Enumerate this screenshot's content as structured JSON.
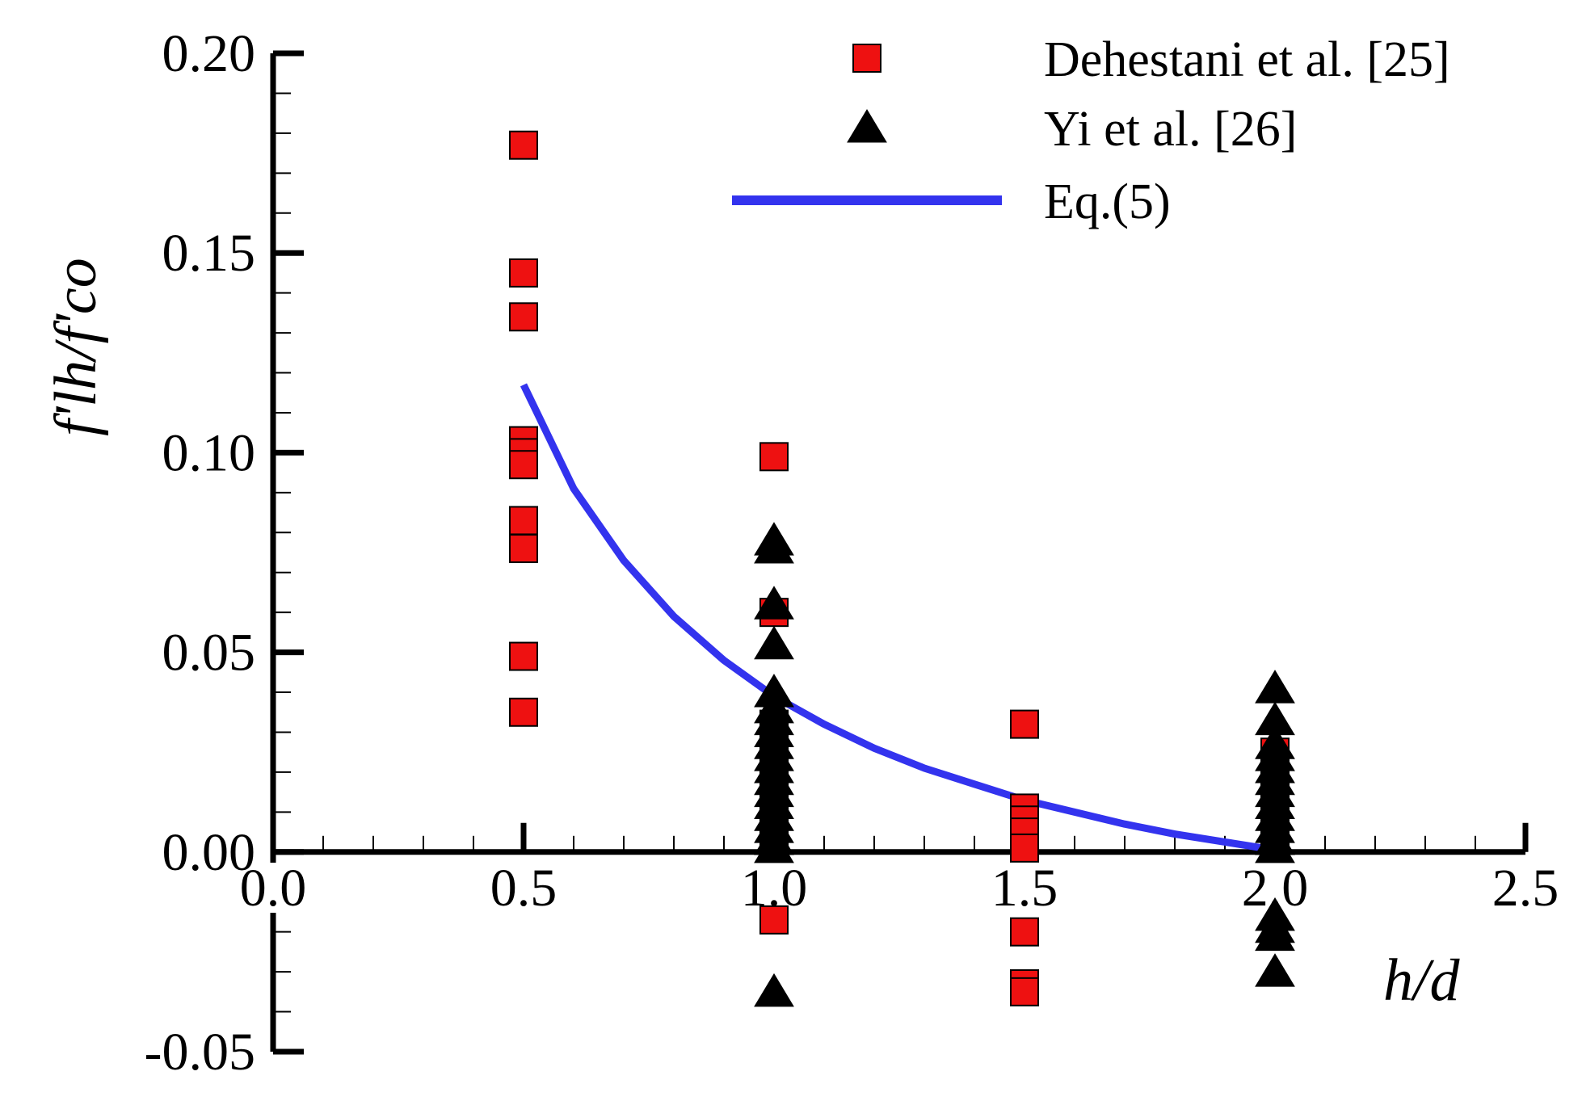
{
  "chart_data": {
    "type": "scatter",
    "xlabel": "h/d",
    "ylabel": "f'lh/f'co",
    "xlim": [
      0.0,
      2.5
    ],
    "ylim": [
      -0.05,
      0.2
    ],
    "xticks": [
      "0.0",
      "0.5",
      "1.0",
      "1.5",
      "2.0",
      "2.5"
    ],
    "yticks": [
      "-0.05",
      "0.00",
      "0.05",
      "0.10",
      "0.15",
      "0.20"
    ],
    "legend_position": "top-right",
    "series": [
      {
        "name": "Dehestani et al.  [25]",
        "marker": "square",
        "color": "#ee1111",
        "points": [
          [
            0.5,
            0.177
          ],
          [
            0.5,
            0.145
          ],
          [
            0.5,
            0.134
          ],
          [
            0.5,
            0.103
          ],
          [
            0.5,
            0.1
          ],
          [
            0.5,
            0.097
          ],
          [
            0.5,
            0.083
          ],
          [
            0.5,
            0.076
          ],
          [
            0.5,
            0.049
          ],
          [
            0.5,
            0.035
          ],
          [
            1.0,
            0.099
          ],
          [
            1.0,
            0.06
          ],
          [
            1.0,
            0.032
          ],
          [
            1.0,
            0.028
          ],
          [
            1.0,
            0.024
          ],
          [
            1.0,
            0.02
          ],
          [
            1.0,
            0.016
          ],
          [
            1.0,
            0.012
          ],
          [
            1.0,
            0.008
          ],
          [
            1.0,
            0.004
          ],
          [
            1.0,
            -0.017
          ],
          [
            1.5,
            0.032
          ],
          [
            1.5,
            0.011
          ],
          [
            1.5,
            0.008
          ],
          [
            1.5,
            0.005
          ],
          [
            1.5,
            0.001
          ],
          [
            1.5,
            -0.02
          ],
          [
            1.5,
            -0.033
          ],
          [
            1.5,
            -0.035
          ],
          [
            2.0,
            0.025
          ],
          [
            2.0,
            0.021
          ],
          [
            2.0,
            0.018
          ],
          [
            2.0,
            0.015
          ],
          [
            2.0,
            0.012
          ],
          [
            2.0,
            0.009
          ],
          [
            2.0,
            0.006
          ],
          [
            2.0,
            0.003
          ]
        ]
      },
      {
        "name": "Yi et al. [26]",
        "marker": "triangle",
        "color": "#000000",
        "points": [
          [
            1.0,
            0.078
          ],
          [
            1.0,
            0.076
          ],
          [
            1.0,
            0.062
          ],
          [
            1.0,
            0.052
          ],
          [
            1.0,
            0.04
          ],
          [
            1.0,
            0.036
          ],
          [
            1.0,
            0.033
          ],
          [
            1.0,
            0.03
          ],
          [
            1.0,
            0.027
          ],
          [
            1.0,
            0.024
          ],
          [
            1.0,
            0.021
          ],
          [
            1.0,
            0.018
          ],
          [
            1.0,
            0.015
          ],
          [
            1.0,
            0.012
          ],
          [
            1.0,
            0.009
          ],
          [
            1.0,
            0.006
          ],
          [
            1.0,
            0.003
          ],
          [
            1.0,
            0.001
          ],
          [
            1.0,
            -0.035
          ],
          [
            2.0,
            0.041
          ],
          [
            2.0,
            0.033
          ],
          [
            2.0,
            0.027
          ],
          [
            2.0,
            0.024
          ],
          [
            2.0,
            0.021
          ],
          [
            2.0,
            0.018
          ],
          [
            2.0,
            0.015
          ],
          [
            2.0,
            0.012
          ],
          [
            2.0,
            0.009
          ],
          [
            2.0,
            0.006
          ],
          [
            2.0,
            0.003
          ],
          [
            2.0,
            0.001
          ],
          [
            2.0,
            -0.016
          ],
          [
            2.0,
            -0.019
          ],
          [
            2.0,
            -0.021
          ],
          [
            2.0,
            -0.03
          ]
        ]
      },
      {
        "name": "Eq.(5)",
        "marker": "line",
        "color": "#3333ee",
        "points": [
          [
            0.5,
            0.117
          ],
          [
            0.6,
            0.091
          ],
          [
            0.7,
            0.073
          ],
          [
            0.8,
            0.059
          ],
          [
            0.9,
            0.048
          ],
          [
            1.0,
            0.039
          ],
          [
            1.1,
            0.032
          ],
          [
            1.2,
            0.026
          ],
          [
            1.3,
            0.021
          ],
          [
            1.4,
            0.017
          ],
          [
            1.5,
            0.013
          ],
          [
            1.6,
            0.01
          ],
          [
            1.7,
            0.007
          ],
          [
            1.8,
            0.0045
          ],
          [
            1.9,
            0.0025
          ],
          [
            2.0,
            0.0005
          ]
        ]
      }
    ]
  }
}
